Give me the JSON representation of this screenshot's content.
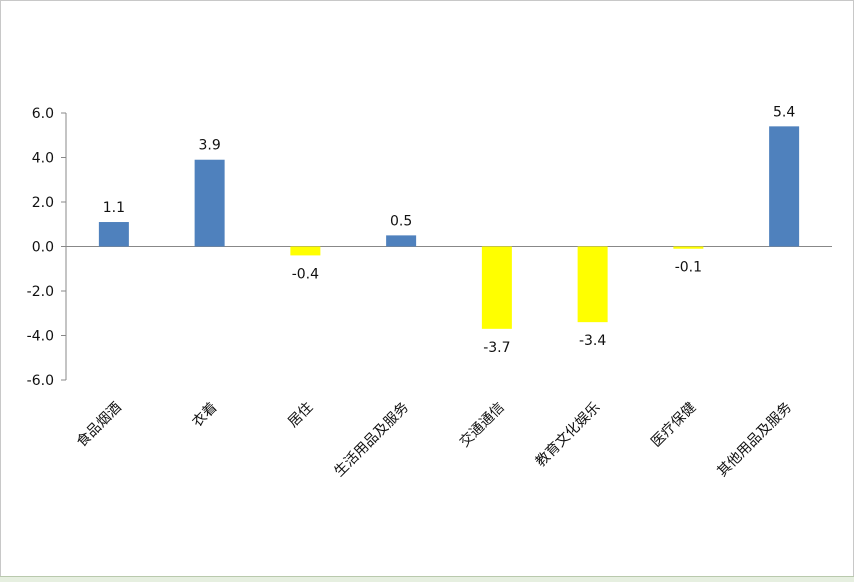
{
  "chart_data": {
    "type": "bar",
    "categories": [
      "食品烟酒",
      "衣着",
      "居住",
      "生活用品及服务",
      "交通通信",
      "教育文化娱乐",
      "医疗保健",
      "其他用品及服务"
    ],
    "values": [
      1.1,
      3.9,
      -0.4,
      0.5,
      -3.7,
      -3.4,
      -0.1,
      5.4
    ],
    "data_labels": [
      "1.1",
      "3.9",
      "-0.4",
      "0.5",
      "-3.7",
      "-3.4",
      "-0.1",
      "5.4"
    ],
    "title": "",
    "xlabel": "",
    "ylabel": "",
    "ylim": [
      -6,
      6
    ],
    "yticks": [
      6,
      4,
      2,
      0,
      -2,
      -4,
      -6
    ],
    "ytick_labels": [
      "6.0",
      "4.0",
      "2.0",
      "0.0",
      "-2.0",
      "-4.0",
      "-6.0"
    ],
    "grid": false,
    "legend": "none",
    "colors": {
      "positive": "#4f81bd",
      "negative": "#ffff00",
      "axis": "#888888"
    }
  }
}
